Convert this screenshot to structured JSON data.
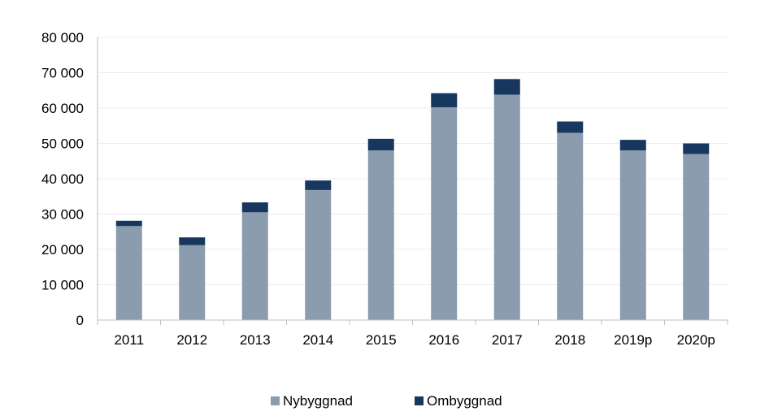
{
  "chart_data": {
    "type": "bar",
    "stacked": true,
    "categories": [
      "2011",
      "2012",
      "2013",
      "2014",
      "2015",
      "2016",
      "2017",
      "2018",
      "2019p",
      "2020p"
    ],
    "series": [
      {
        "name": "Nybyggnad",
        "color": "#8a9cad",
        "values": [
          26600,
          21200,
          30500,
          36800,
          48000,
          60200,
          63800,
          53000,
          48000,
          47000
        ]
      },
      {
        "name": "Ombyggnad",
        "color": "#17375e",
        "values": [
          1500,
          2200,
          2800,
          2700,
          3300,
          4000,
          4400,
          3200,
          3000,
          3000
        ]
      }
    ],
    "y_ticks": [
      "0",
      "10 000",
      "20 000",
      "30 000",
      "40 000",
      "50 000",
      "60 000",
      "70 000",
      "80 000"
    ],
    "ylim": [
      0,
      80000
    ],
    "grid": true,
    "legend_position": "bottom"
  }
}
